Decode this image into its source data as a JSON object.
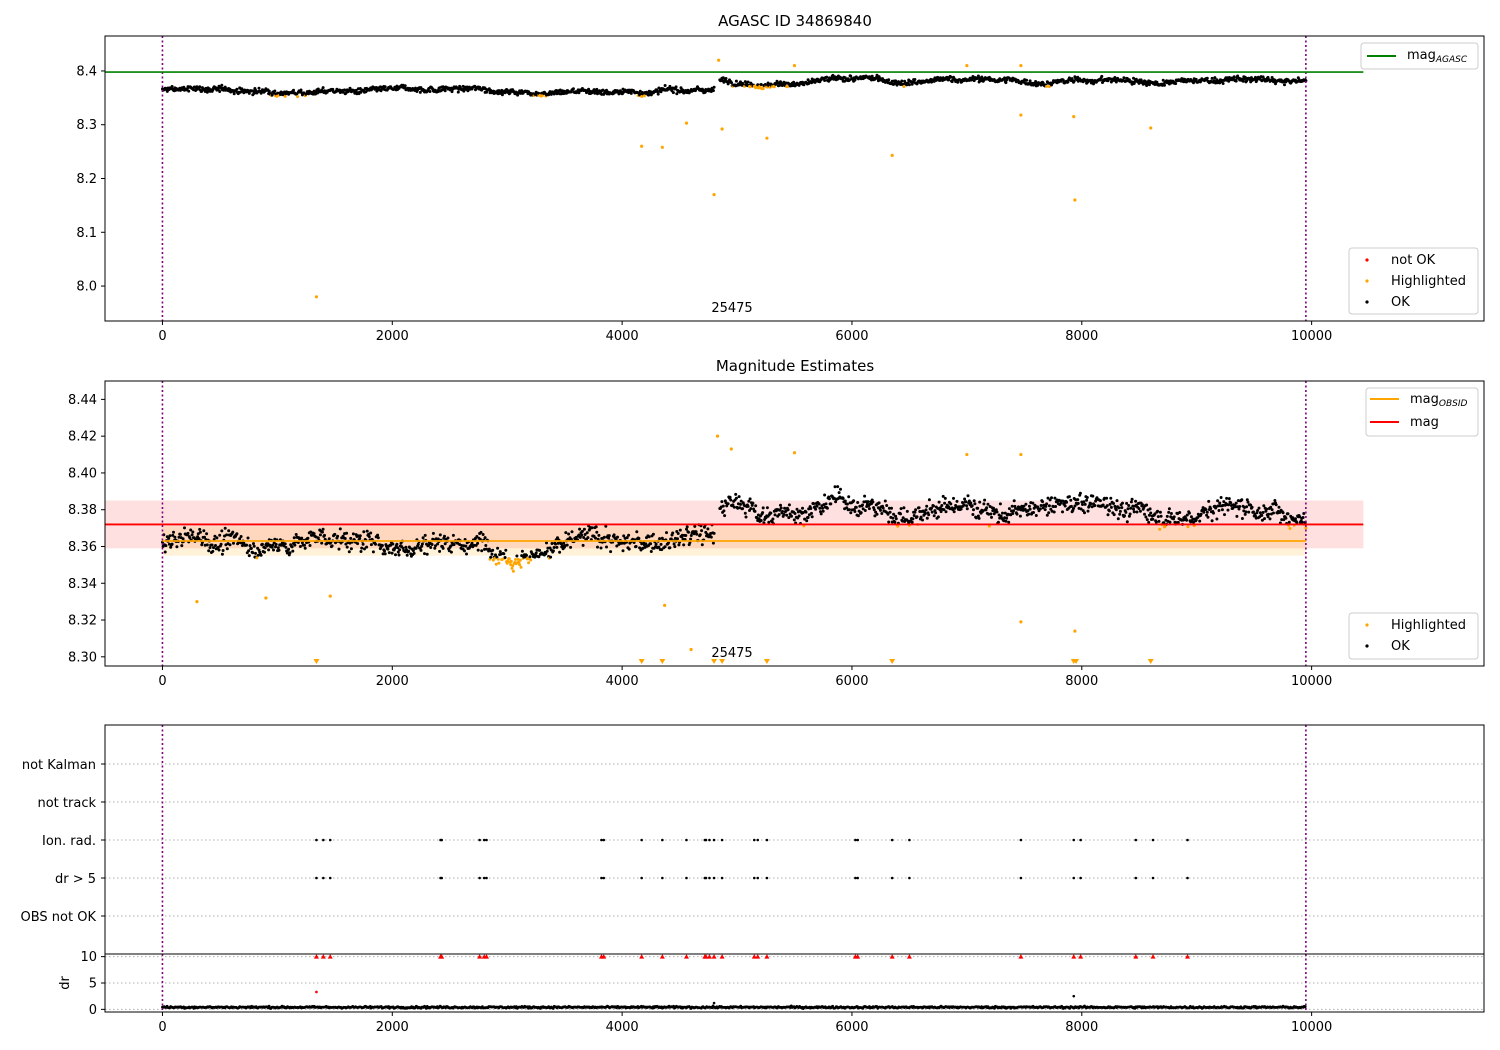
{
  "chart_data": [
    {
      "type": "scatter",
      "title": "AGASC ID 34869840",
      "xlim": [
        -500,
        11500
      ],
      "ylim": [
        7.935,
        8.465
      ],
      "xticks": [
        "0",
        "2000",
        "4000",
        "6000",
        "8000",
        "10000"
      ],
      "yticks": [
        "8.0",
        "8.1",
        "8.2",
        "8.3",
        "8.4"
      ],
      "vlines": [
        0,
        9950
      ],
      "hline": {
        "value": 8.398,
        "x_range": [
          -500,
          10450
        ],
        "color": "#008000"
      },
      "annotation": "25475",
      "annotation_x": 4800,
      "line_legend": {
        "text": "mag",
        "sub": "AGASC"
      },
      "marker_legend": [
        "not OK",
        "Highlighted",
        "OK"
      ],
      "colors": {
        "ok": "#000000",
        "highlighted": "#ffa500",
        "not_ok": "#ff0000"
      },
      "ok_series": {
        "baseline_segments": [
          [
            0,
            4800,
            8.364
          ],
          [
            4850,
            9950,
            8.381
          ]
        ],
        "noise": 0.009
      },
      "highlighted_points": [
        [
          1340,
          7.98
        ],
        [
          4170,
          8.26
        ],
        [
          4350,
          8.258
        ],
        [
          4560,
          8.303
        ],
        [
          4800,
          8.17
        ],
        [
          4870,
          8.292
        ],
        [
          5260,
          8.275
        ],
        [
          6350,
          8.243
        ],
        [
          7470,
          8.318
        ],
        [
          7930,
          8.315
        ],
        [
          7940,
          8.16
        ],
        [
          8600,
          8.294
        ],
        [
          4840,
          8.42
        ],
        [
          5500,
          8.41
        ],
        [
          7000,
          8.41
        ],
        [
          7470,
          8.41
        ]
      ]
    },
    {
      "type": "scatter",
      "title": "Magnitude Estimates",
      "xlim": [
        -500,
        11500
      ],
      "ylim": [
        8.295,
        8.45
      ],
      "xticks": [
        "0",
        "2000",
        "4000",
        "6000",
        "8000",
        "10000"
      ],
      "yticks": [
        "8.30",
        "8.32",
        "8.34",
        "8.36",
        "8.38",
        "8.40",
        "8.42",
        "8.44"
      ],
      "vlines": [
        0,
        9950
      ],
      "mag_line": {
        "value": 8.372,
        "band": [
          8.359,
          8.385
        ],
        "x_range": [
          -500,
          10450
        ],
        "color": "#ff0000"
      },
      "mag_obsid_line": {
        "value": 8.363,
        "band": [
          8.355,
          8.371
        ],
        "x_range": [
          0,
          9950
        ],
        "color": "#ffa500"
      },
      "annotation": "25475",
      "annotation_x": 4800,
      "line_legend": [
        {
          "text": "mag",
          "sub": "OBSID",
          "color": "#ffa500"
        },
        {
          "text": "mag",
          "sub": "",
          "color": "#ff0000"
        }
      ],
      "marker_legend": [
        "Highlighted",
        "OK"
      ],
      "ok_series": {
        "baseline_segments": [
          [
            0,
            4800,
            8.363
          ],
          [
            4850,
            9950,
            8.381
          ]
        ],
        "noise": 0.009
      },
      "highlighted_points": [
        [
          300,
          8.33
        ],
        [
          900,
          8.332
        ],
        [
          1460,
          8.333
        ],
        [
          4370,
          8.328
        ],
        [
          4600,
          8.304
        ],
        [
          7470,
          8.319
        ],
        [
          7940,
          8.314
        ],
        [
          4830,
          8.42
        ],
        [
          4950,
          8.413
        ],
        [
          5500,
          8.411
        ],
        [
          7470,
          8.41
        ],
        [
          7000,
          8.41
        ]
      ],
      "offscale_markers": [
        1340,
        4170,
        4350,
        4800,
        4870,
        5260,
        6350,
        7930,
        7950,
        8600
      ]
    },
    {
      "type": "scatter",
      "title": "",
      "xlim": [
        -500,
        11500
      ],
      "xticks": [
        "0",
        "2000",
        "4000",
        "6000",
        "8000",
        "10000"
      ],
      "vlines": [
        0,
        9950
      ],
      "categories": [
        "not Kalman",
        "not track",
        "Ion. rad.",
        "dr > 5",
        "OBS not OK"
      ],
      "flag_x": [
        1340,
        1400,
        1460,
        2420,
        2430,
        2760,
        2800,
        2820,
        3820,
        3840,
        4170,
        4350,
        4560,
        4720,
        4730,
        4760,
        4800,
        4870,
        5150,
        5180,
        5260,
        6030,
        6050,
        6350,
        6500,
        7470,
        7930,
        7990,
        8470,
        8620,
        8920
      ],
      "flag_rows": [
        "Ion. rad.",
        "dr > 5"
      ]
    },
    {
      "type": "scatter",
      "title": "",
      "xlim": [
        -500,
        11500
      ],
      "ylim": [
        -0.5,
        10.5
      ],
      "xticks": [
        "0",
        "2000",
        "4000",
        "6000",
        "8000",
        "10000"
      ],
      "yticks": [
        "0",
        "5",
        "10"
      ],
      "ylabel": "dr",
      "vlines": [
        0,
        9950
      ],
      "dr_baseline": 0.4,
      "dr_outliers": [
        [
          1340,
          3.3
        ],
        [
          7930,
          2.5
        ],
        [
          4800,
          1.2
        ]
      ],
      "clipped_x": [
        1340,
        1400,
        1460,
        2420,
        2430,
        2760,
        2800,
        2820,
        3820,
        3840,
        4170,
        4350,
        4560,
        4720,
        4730,
        4760,
        4800,
        4870,
        5150,
        5180,
        5260,
        6030,
        6050,
        6350,
        6500,
        7470,
        7930,
        7990,
        8470,
        8620,
        8920
      ]
    }
  ]
}
